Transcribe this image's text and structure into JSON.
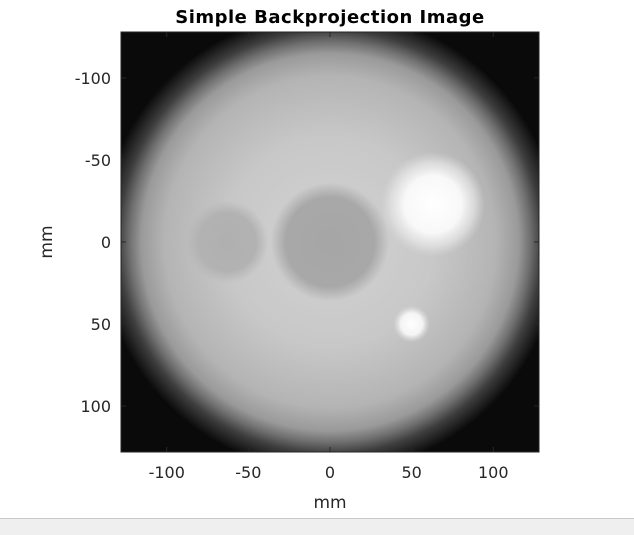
{
  "chart_data": {
    "type": "heatmap",
    "title": "Simple Backprojection Image",
    "xlabel": "mm",
    "ylabel": "mm",
    "xlim": [
      -128,
      128
    ],
    "ylim": [
      -128,
      128
    ],
    "y_direction": "down",
    "colormap": "gray",
    "x_ticks": [
      -100,
      -50,
      0,
      50,
      100
    ],
    "y_ticks": [
      -100,
      -50,
      0,
      50,
      100
    ],
    "grid": false,
    "legend": "none",
    "features": [
      {
        "shape": "disc",
        "cx": 0,
        "cy": 0,
        "r": 125,
        "intensity": 0.8
      },
      {
        "shape": "disc",
        "cx": 0,
        "cy": 0,
        "r": 33,
        "intensity": 0.63
      },
      {
        "shape": "disc",
        "cx": -63,
        "cy": 0,
        "r": 22,
        "intensity": 0.7
      },
      {
        "shape": "disc",
        "cx": 63,
        "cy": -23,
        "r": 22,
        "intensity": 1.0
      },
      {
        "shape": "disc",
        "cx": 50,
        "cy": 50,
        "r": 7,
        "intensity": 1.0
      }
    ]
  }
}
